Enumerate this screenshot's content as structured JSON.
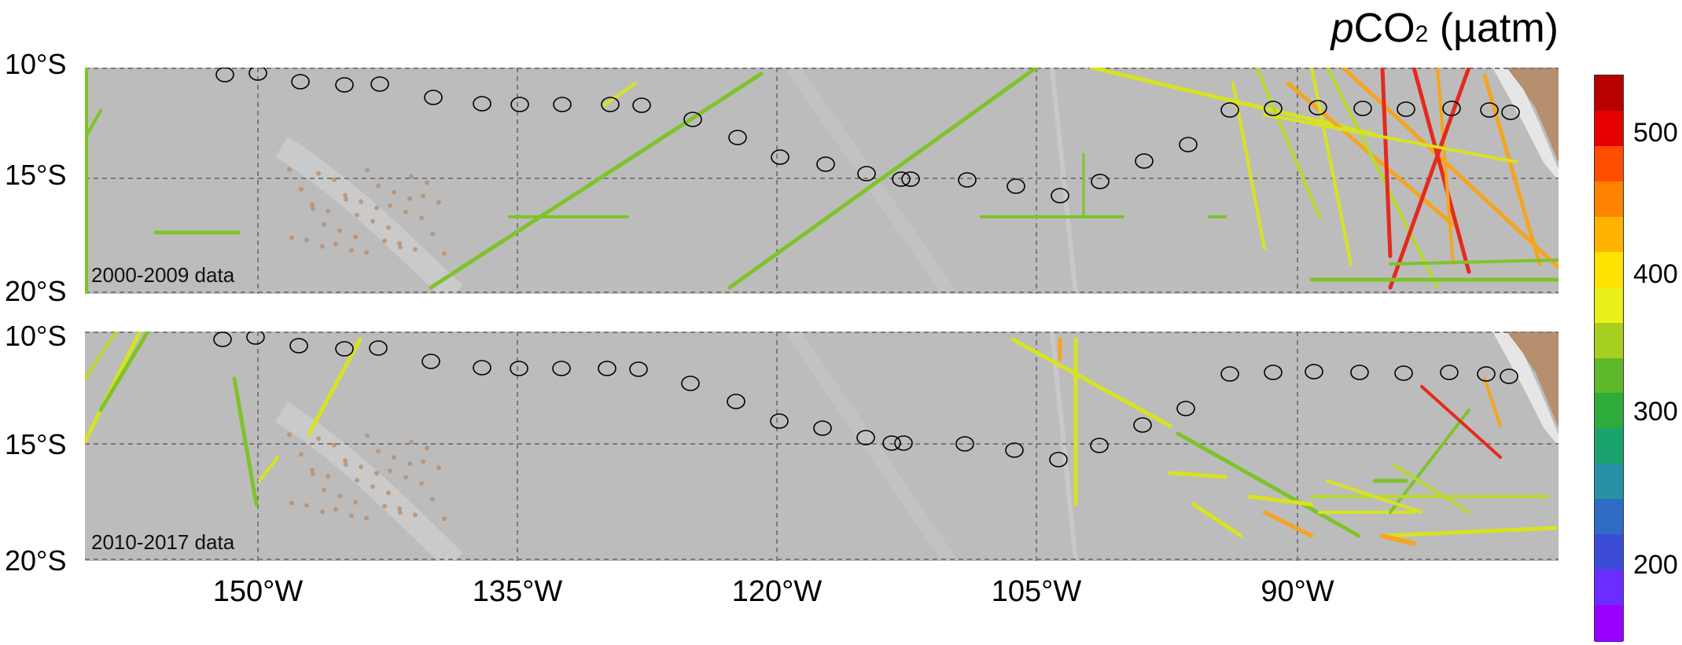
{
  "title": {
    "italic": "p",
    "main": "CO",
    "sub": "2",
    "unit": " (µatm)"
  },
  "panels": [
    {
      "label": "2000-2009 data"
    },
    {
      "label": "2010-2017 data"
    }
  ],
  "lat_labels": [
    "10°S",
    "15°S",
    "20°S"
  ],
  "lon_labels": [
    "150°W",
    "135°W",
    "120°W",
    "105°W",
    "90°W"
  ],
  "colorbar": {
    "ticks": [
      "200",
      "300",
      "400",
      "500"
    ],
    "range": [
      150,
      550
    ],
    "colors": [
      "#9a00ff",
      "#6a2cff",
      "#3b4bd6",
      "#2f6cc4",
      "#2792a6",
      "#1aa36d",
      "#2eab3b",
      "#5fb72a",
      "#a6cf1f",
      "#e9f01a",
      "#ffe300",
      "#ffb400",
      "#ff8200",
      "#ff4d00",
      "#e60000",
      "#b80000"
    ]
  },
  "map_colors": {
    "ocean": "#bcbcbc",
    "land": "#b68f6e",
    "grid": "#7a7a7a",
    "circle": "#000000"
  }
}
